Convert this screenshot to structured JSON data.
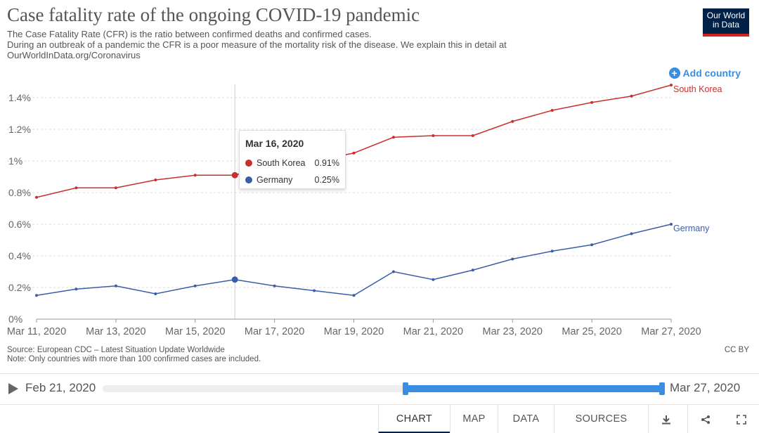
{
  "header": {
    "title": "Case fatality rate of the ongoing COVID-19 pandemic",
    "subtitle_lines": [
      "The Case Fatality Rate (CFR) is the ratio between confirmed deaths and confirmed cases.",
      "During an outbreak of a pandemic the CFR is a poor measure of the mortality risk of the disease. We explain this in detail at",
      "OurWorldInData.org/Coronavirus"
    ],
    "logo_line1": "Our World",
    "logo_line2": "in Data"
  },
  "add_country_label": "Add country",
  "tooltip": {
    "date": "Mar 16, 2020",
    "rows": [
      {
        "name": "South Korea",
        "value": "0.91%",
        "color": "#c8302e"
      },
      {
        "name": "Germany",
        "value": "0.25%",
        "color": "#3a5da8"
      }
    ]
  },
  "chart_data": {
    "type": "line",
    "x": [
      "2020-03-11",
      "2020-03-12",
      "2020-03-13",
      "2020-03-14",
      "2020-03-15",
      "2020-03-16",
      "2020-03-17",
      "2020-03-18",
      "2020-03-19",
      "2020-03-20",
      "2020-03-21",
      "2020-03-22",
      "2020-03-23",
      "2020-03-24",
      "2020-03-25",
      "2020-03-26",
      "2020-03-27"
    ],
    "x_tick_labels": [
      "Mar 11, 2020",
      "Mar 13, 2020",
      "Mar 15, 2020",
      "Mar 17, 2020",
      "Mar 19, 2020",
      "Mar 21, 2020",
      "Mar 23, 2020",
      "Mar 25, 2020",
      "Mar 27, 2020"
    ],
    "y_tick_labels": [
      "0%",
      "0.2%",
      "0.4%",
      "0.6%",
      "0.8%",
      "1%",
      "1.2%",
      "1.4%"
    ],
    "ylim": [
      0,
      1.4
    ],
    "y_unit": "%",
    "grid": "horizontal dashed",
    "series": [
      {
        "name": "South Korea",
        "color": "#c8302e",
        "values": [
          0.77,
          0.83,
          0.83,
          0.88,
          0.91,
          0.91,
          0.98,
          1.0,
          1.05,
          1.15,
          1.16,
          1.16,
          1.25,
          1.32,
          1.37,
          1.41,
          1.48
        ]
      },
      {
        "name": "Germany",
        "color": "#3a5da8",
        "values": [
          0.15,
          0.19,
          0.21,
          0.16,
          0.21,
          0.25,
          0.21,
          0.18,
          0.15,
          0.3,
          0.25,
          0.31,
          0.38,
          0.43,
          0.47,
          0.54,
          0.6
        ]
      }
    ],
    "highlight_index": 5
  },
  "footer": {
    "source": "Source: European CDC – Latest Situation Update Worldwide",
    "note": "Note: Only countries with more than 100 confirmed cases are included.",
    "license": "CC BY"
  },
  "timeline": {
    "start_label": "Feb 21, 2020",
    "end_label": "Mar 27, 2020"
  },
  "tabs": [
    {
      "label": "CHART",
      "active": true
    },
    {
      "label": "MAP",
      "active": false
    },
    {
      "label": "DATA",
      "active": false
    },
    {
      "label": "SOURCES",
      "active": false
    }
  ],
  "icons": [
    "download-icon",
    "share-icon",
    "fullscreen-icon"
  ]
}
